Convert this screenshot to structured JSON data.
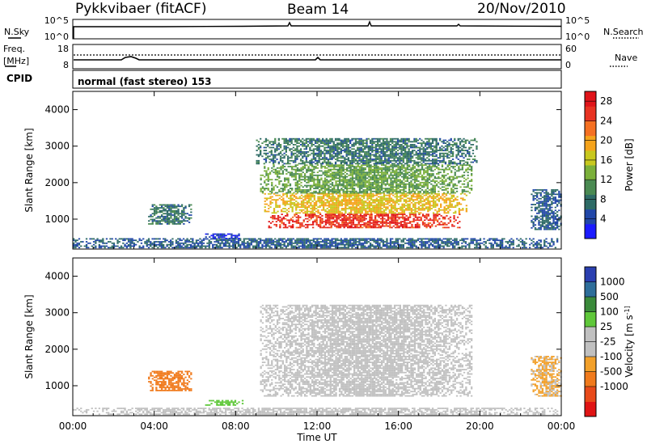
{
  "header": {
    "station": "Pykkvibaer (fitACF)",
    "beam": "Beam 14",
    "date": "20/Nov/2010"
  },
  "strips": {
    "nsky": {
      "label": "N.Sky",
      "ticks_left": [
        "10^5",
        "10^0"
      ],
      "ticks_right": [
        "10^5",
        "10^0"
      ],
      "right_label": "N.Search"
    },
    "freq": {
      "label_line1": "Freq.",
      "label_line2": "[MHz]",
      "ticks_left": [
        "18",
        "8"
      ],
      "ticks_right": [
        "60",
        "0"
      ],
      "right_label": "Nave"
    },
    "cpid": {
      "label": "CPID",
      "text": "normal (fast stereo) 153"
    }
  },
  "chart_data": [
    {
      "type": "heatmap",
      "title": "",
      "xlabel": "",
      "ylabel": "Slant Range [km]",
      "x_unit": "UT hours",
      "xlim": [
        0,
        24
      ],
      "ylim": [
        180,
        4500
      ],
      "x_ticks": [
        0,
        4,
        8,
        12,
        16,
        20,
        24
      ],
      "y_ticks": [
        1000,
        2000,
        3000,
        4000
      ],
      "colorbar": {
        "label": "Power [dB]",
        "range": [
          0,
          30
        ],
        "ticks": [
          "4",
          "8",
          "12",
          "16",
          "20",
          "24",
          "28"
        ]
      },
      "regions": [
        {
          "t": [
            9.6,
            19.0
          ],
          "r": [
            750,
            1150
          ],
          "value": 26
        },
        {
          "t": [
            9.4,
            19.3
          ],
          "r": [
            1150,
            1700
          ],
          "value": 18
        },
        {
          "t": [
            9.2,
            19.6
          ],
          "r": [
            1700,
            2500
          ],
          "value": 12
        },
        {
          "t": [
            9.0,
            19.8
          ],
          "r": [
            2500,
            3200
          ],
          "value": 8
        },
        {
          "t": [
            3.7,
            5.8
          ],
          "r": [
            850,
            1400
          ],
          "value": 8
        },
        {
          "t": [
            0.0,
            23.8
          ],
          "r": [
            200,
            450
          ],
          "value": 6
        },
        {
          "t": [
            6.5,
            8.3
          ],
          "r": [
            450,
            600
          ],
          "value": 3
        },
        {
          "t": [
            22.5,
            24.0
          ],
          "r": [
            700,
            1800
          ],
          "value": 6
        }
      ]
    },
    {
      "type": "heatmap",
      "title": "",
      "xlabel": "Time UT",
      "ylabel": "Slant Range [km]",
      "x_unit": "UT hours",
      "xlim": [
        0,
        24
      ],
      "ylim": [
        180,
        4500
      ],
      "x_ticks": [
        0,
        4,
        8,
        12,
        16,
        20,
        24
      ],
      "x_tick_labels": [
        "00:00",
        "04:00",
        "08:00",
        "12:00",
        "16:00",
        "20:00",
        "00:00"
      ],
      "y_ticks": [
        1000,
        2000,
        3000,
        4000
      ],
      "colorbar": {
        "label": "Velocity [m s^-1]",
        "ticks": [
          "1000",
          "500",
          "100",
          "25",
          "-25",
          "-100",
          "-500",
          "-1000"
        ]
      },
      "regions": [
        {
          "t": [
            9.2,
            19.6
          ],
          "r": [
            700,
            3200
          ],
          "value": 0
        },
        {
          "t": [
            3.7,
            5.8
          ],
          "r": [
            850,
            1400
          ],
          "value": -150
        },
        {
          "t": [
            6.5,
            8.3
          ],
          "r": [
            450,
            600
          ],
          "value": 60
        },
        {
          "t": [
            0.0,
            23.8
          ],
          "r": [
            200,
            400
          ],
          "value": 0
        },
        {
          "t": [
            22.5,
            24.0
          ],
          "r": [
            700,
            1800
          ],
          "value": -30
        }
      ]
    }
  ]
}
